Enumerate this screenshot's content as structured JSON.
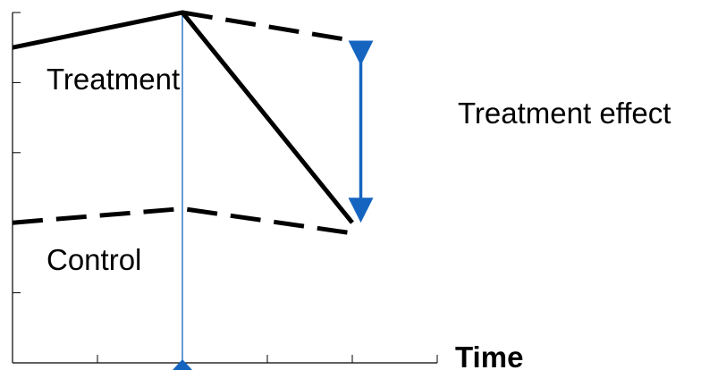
{
  "chart_data": {
    "type": "line",
    "title": "",
    "xlabel": "Time",
    "ylabel": "",
    "xlim": [
      0,
      10
    ],
    "ylim": [
      0,
      10
    ],
    "x_ticks": [
      0,
      2,
      4,
      6,
      8,
      10
    ],
    "y_ticks": [
      0,
      2,
      4,
      6,
      8,
      10
    ],
    "intervention_x": 4,
    "series": [
      {
        "name": "Treatment",
        "style": "solid",
        "color": "#000000",
        "points": [
          [
            0,
            9.0
          ],
          [
            4,
            10.0
          ],
          [
            8,
            4.0
          ]
        ]
      },
      {
        "name": "",
        "style": "dashed",
        "color": "#000000",
        "points": [
          [
            4,
            10.0
          ],
          [
            8,
            9.2
          ]
        ]
      },
      {
        "name": "Control",
        "style": "dashed",
        "color": "#000000",
        "points": [
          [
            0,
            4.0
          ],
          [
            4,
            4.4
          ],
          [
            8,
            3.7
          ]
        ]
      }
    ],
    "annotations": [
      {
        "text": "Treatment effect",
        "type": "double-arrow",
        "color": "#1565c0",
        "x": 8.2,
        "y_from": 9.2,
        "y_to": 4.0
      }
    ],
    "intervention_marker_color": "#1565c0"
  }
}
